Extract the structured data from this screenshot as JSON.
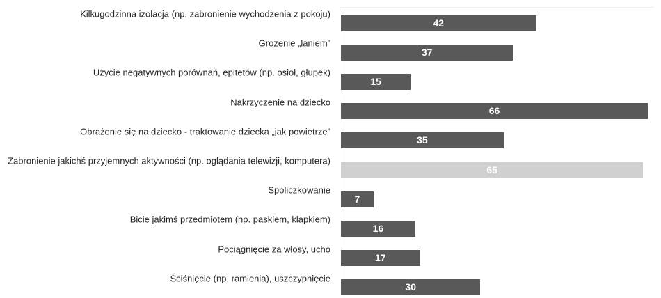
{
  "chart_data": {
    "type": "bar",
    "orientation": "horizontal",
    "categories": [
      "Kilkugodzinna izolacja (np. zabronienie wychodzenia z pokoju)",
      "Grożenie „laniem”",
      "Użycie negatywnych porównań, epitetów (np. osioł, głupek)",
      "Nakrzyczenie na dziecko",
      "Obrażenie się na dziecko - traktowanie dziecka „jak powietrze”",
      "Zabronienie jakichś przyjemnych aktywności (np. oglądania telewizji, komputera)",
      "Spoliczkowanie",
      "Bicie jakimś przedmiotem (np. paskiem, klapkiem)",
      "Pociągnięcie za włosy, ucho",
      "Ściśnięcie (np. ramienia), uszczypnięcie"
    ],
    "values": [
      42,
      37,
      15,
      66,
      35,
      65,
      7,
      16,
      17,
      30
    ],
    "colors": [
      "#595959",
      "#595959",
      "#595959",
      "#595959",
      "#595959",
      "#d0d0d0",
      "#595959",
      "#595959",
      "#595959",
      "#595959"
    ]
  }
}
